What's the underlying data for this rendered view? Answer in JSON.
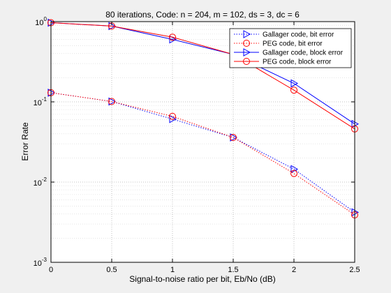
{
  "chart_data": {
    "type": "line",
    "title": "80 iterations, Code: n = 204, m = 102, ds = 3, dc = 6",
    "xlabel": "Signal-to-noise ratio per bit, Eb/No (dB)",
    "ylabel": "Error Rate",
    "x": [
      0,
      0.5,
      1,
      1.5,
      2,
      2.5
    ],
    "x_tick_labels": [
      "0",
      "0.5",
      "1",
      "1.5",
      "2",
      "2.5"
    ],
    "y_tick_labels": [
      {
        "base": "10",
        "exp": "0",
        "value": 1
      },
      {
        "base": "10",
        "exp": "-1",
        "value": 0.1
      },
      {
        "base": "10",
        "exp": "-2",
        "value": 0.01
      },
      {
        "base": "10",
        "exp": "-3",
        "value": 0.001
      }
    ],
    "xlim": [
      0,
      2.5
    ],
    "ylim": [
      0.001,
      1
    ],
    "yscale": "log",
    "grid": "major-and-minor (dotted)",
    "legend_position": "top-right",
    "series": [
      {
        "name": "Gallager code, bit error",
        "color": "#0000ff",
        "style": "dotted",
        "marker": "triangle-right",
        "values": [
          0.13,
          0.101,
          0.061,
          0.036,
          0.0145,
          0.0042
        ]
      },
      {
        "name": "PEG code, bit error",
        "color": "#ff0000",
        "style": "dotted",
        "marker": "circle",
        "values": [
          0.13,
          0.101,
          0.066,
          0.036,
          0.0128,
          0.0039
        ]
      },
      {
        "name": "Gallager code, block error",
        "color": "#0000ff",
        "style": "solid",
        "marker": "triangle-right",
        "values": [
          0.97,
          0.88,
          0.6,
          0.39,
          0.17,
          0.053
        ]
      },
      {
        "name": "PEG code, block error",
        "color": "#ff0000",
        "style": "solid",
        "marker": "circle",
        "values": [
          0.97,
          0.88,
          0.64,
          0.39,
          0.14,
          0.046
        ]
      }
    ]
  }
}
